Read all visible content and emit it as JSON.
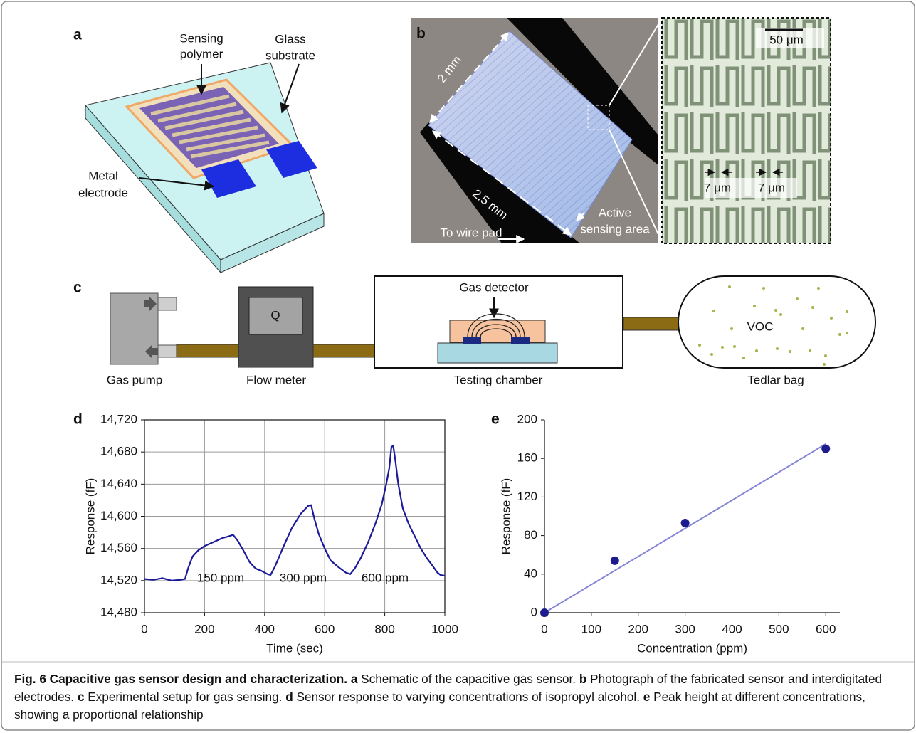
{
  "panels": {
    "a": {
      "letter": "a",
      "sensing_polymer": [
        "Sensing",
        "polymer"
      ],
      "glass_substrate": [
        "Glass",
        "substrate"
      ],
      "metal_electrode": [
        "Metal",
        "electrode"
      ]
    },
    "b": {
      "letter": "b",
      "width": "2 mm",
      "length": "2.5 mm",
      "wire_pad": "To wire pad",
      "active": [
        "Active",
        "sensing area"
      ],
      "scale": "50 μm",
      "gap": [
        "7 μm",
        "7 μm"
      ]
    },
    "c": {
      "letter": "c",
      "flow_symbol": "Q",
      "detector": "Gas detector",
      "voc": "VOC",
      "pump": "Gas pump",
      "meter": "Flow meter",
      "chamber": "Testing chamber",
      "bag": "Tedlar bag"
    }
  },
  "chart_data": [
    {
      "type": "line",
      "panel": "d",
      "xlabel": "Time (sec)",
      "ylabel": "Response (fF)",
      "annotations": [
        "150 ppm",
        "300 ppm",
        "600 ppm"
      ],
      "color": "#1a1a9a",
      "grid": true,
      "x": [
        0,
        30,
        60,
        90,
        120,
        135,
        145,
        160,
        180,
        200,
        230,
        260,
        280,
        295,
        310,
        330,
        350,
        370,
        390,
        410,
        420,
        435,
        460,
        490,
        520,
        545,
        555,
        565,
        580,
        600,
        620,
        645,
        670,
        685,
        700,
        720,
        745,
        770,
        790,
        805,
        815,
        822,
        828,
        835,
        845,
        860,
        880,
        900,
        920,
        940,
        960,
        975,
        985,
        1000
      ],
      "values": [
        14522,
        14521,
        14523,
        14520,
        14521,
        14522,
        14535,
        14550,
        14558,
        14563,
        14568,
        14573,
        14575,
        14577,
        14570,
        14557,
        14543,
        14535,
        14532,
        14528,
        14527,
        14538,
        14560,
        14585,
        14603,
        14613,
        14614,
        14598,
        14578,
        14560,
        14545,
        14537,
        14530,
        14528,
        14535,
        14548,
        14568,
        14592,
        14615,
        14640,
        14660,
        14686,
        14688,
        14670,
        14640,
        14610,
        14590,
        14575,
        14560,
        14548,
        14538,
        14530,
        14527,
        14526
      ],
      "xlim": [
        0,
        1000
      ],
      "xticks": [
        0,
        200,
        400,
        600,
        800,
        1000
      ],
      "ylim": [
        14480,
        14720
      ],
      "yticks": [
        {
          "value": 14480,
          "label": "14,480"
        },
        {
          "value": 14520,
          "label": "14,520"
        },
        {
          "value": 14560,
          "label": "14,560"
        },
        {
          "value": 14600,
          "label": "14,600"
        },
        {
          "value": 14640,
          "label": "14,640"
        },
        {
          "value": 14680,
          "label": "14,680"
        },
        {
          "value": 14720,
          "label": "14,720"
        }
      ]
    },
    {
      "type": "scatter",
      "panel": "e",
      "xlabel": "Concentration (ppm)",
      "ylabel": "Response (fF)",
      "color": "#1c1c8e",
      "grid": false,
      "x": [
        0,
        150,
        300,
        600
      ],
      "values": [
        0,
        54,
        93,
        170
      ],
      "fit": {
        "color": "#8585d6",
        "x": [
          0,
          600
        ],
        "values": [
          0,
          175
        ]
      },
      "xlim": [
        0,
        630
      ],
      "xticks": [
        0,
        100,
        200,
        300,
        400,
        500,
        600
      ],
      "ylim": [
        0,
        200
      ],
      "yticks": [
        0,
        40,
        80,
        120,
        160,
        200
      ]
    }
  ],
  "caption": {
    "title": "Fig. 6 Capacitive gas sensor design and characterization.",
    "items": [
      {
        "label": "a",
        "text": "Schematic of the capacitive gas sensor."
      },
      {
        "label": "b",
        "text": "Photograph of the fabricated sensor and interdigitated electrodes."
      },
      {
        "label": "c",
        "text": "Experimental setup for gas sensing."
      },
      {
        "label": "d",
        "text": "Sensor response to varying concentrations of isopropyl alcohol."
      },
      {
        "label": "e",
        "text": "Peak height at different concentrations, showing a proportional relationship"
      }
    ]
  }
}
